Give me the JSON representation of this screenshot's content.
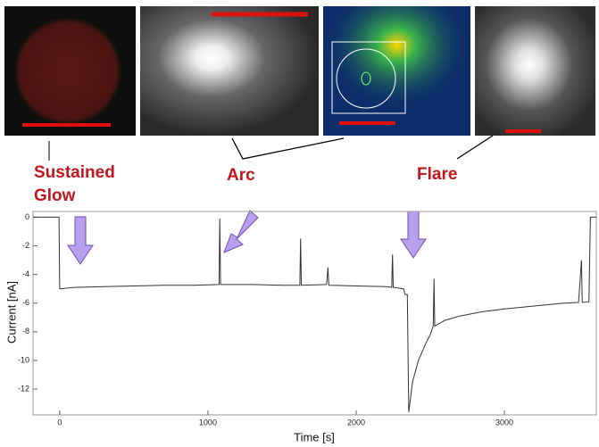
{
  "annotations": [
    "Sustained Glow",
    "Arc",
    "Flare"
  ],
  "chart_data": {
    "type": "line",
    "xlabel": "Time [s]",
    "ylabel": "Current [nA]",
    "color": "#333333",
    "x": [
      -180,
      -5,
      0,
      100,
      300,
      500,
      700,
      900,
      1075,
      1080,
      1085,
      1300,
      1500,
      1620,
      1625,
      1630,
      1800,
      1810,
      1815,
      2000,
      2200,
      2240,
      2245,
      2250,
      2320,
      2330,
      2345,
      2355,
      2380,
      2420,
      2470,
      2500,
      2520,
      2525,
      2530,
      2600,
      2700,
      2850,
      3000,
      3200,
      3400,
      3500,
      3520,
      3525,
      3570,
      3580,
      3620
    ],
    "values": [
      0,
      0,
      -5.0,
      -4.9,
      -4.85,
      -4.8,
      -4.75,
      -4.75,
      -4.7,
      -0.1,
      -4.7,
      -4.7,
      -4.75,
      -4.75,
      -1.5,
      -4.75,
      -4.7,
      -3.5,
      -4.75,
      -4.8,
      -4.85,
      -4.9,
      -2.6,
      -4.9,
      -5.0,
      -5.4,
      -5.4,
      -13.6,
      -11.5,
      -10,
      -8.8,
      -8.2,
      -7.6,
      -4.3,
      -7.6,
      -7.2,
      -6.9,
      -6.6,
      -6.4,
      -6.2,
      -6.0,
      -5.95,
      -3.0,
      -5.95,
      -5.9,
      0,
      0
    ],
    "xlim": [
      -180,
      3620
    ],
    "ylim": [
      -13.8,
      0.4
    ],
    "xticks": [
      0,
      1000,
      2000,
      3000
    ],
    "yticks": [
      0,
      -2,
      -4,
      -6,
      -8,
      -10,
      -12
    ]
  }
}
